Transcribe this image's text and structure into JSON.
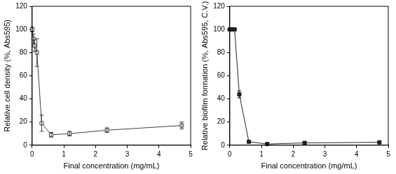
{
  "chart_data": [
    {
      "type": "line",
      "x_label": "Final concentration (mg/mL)",
      "y_label": "Relative cell density (%, Abs595)",
      "x": [
        0,
        0.0375,
        0.075,
        0.15,
        0.3,
        0.6,
        1.18,
        2.36,
        4.72
      ],
      "values": [
        100,
        92,
        86,
        80,
        19,
        9,
        10,
        13,
        17
      ],
      "errors": [
        2,
        4,
        5,
        12,
        7,
        2,
        2,
        2,
        3
      ],
      "color": "#404040",
      "marker": "square_open",
      "line_style": "solid",
      "xlim": [
        0,
        5
      ],
      "xticks": [
        0,
        1,
        2,
        3,
        4,
        5
      ],
      "ylim": [
        0,
        120
      ],
      "yticks": [
        0,
        20,
        40,
        60,
        80,
        100,
        120
      ],
      "grid": false
    },
    {
      "type": "line",
      "x_label": "Final concentration (mg/mL)",
      "y_label": "Relative biofilm formation (%, Abs595, C.V.)",
      "x": [
        0,
        0.0375,
        0.075,
        0.15,
        0.3,
        0.6,
        1.18,
        2.36,
        4.72
      ],
      "values": [
        100,
        100,
        100,
        100,
        44,
        3,
        1,
        2,
        2.5
      ],
      "errors": [
        1,
        1,
        1,
        1,
        3,
        1,
        1,
        1,
        1
      ],
      "color": "#202020",
      "marker": "square_filled",
      "line_style": "solid",
      "xlim": [
        0,
        5
      ],
      "xticks": [
        0,
        1,
        2,
        3,
        4,
        5
      ],
      "ylim": [
        0,
        120
      ],
      "yticks": [
        0,
        20,
        40,
        60,
        80,
        100,
        120
      ],
      "grid": false
    }
  ]
}
